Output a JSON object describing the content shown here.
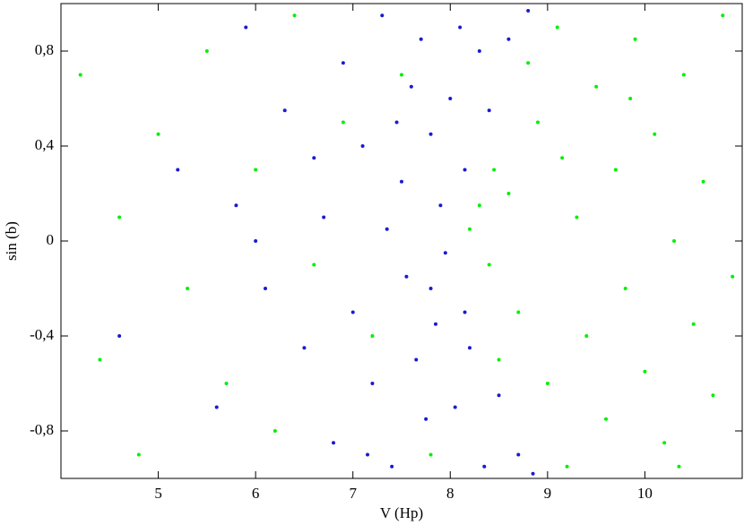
{
  "chart_data": {
    "type": "scatter",
    "xlabel": "V (Hp)",
    "ylabel": "sin (b)",
    "xlim": [
      4.0,
      11.0
    ],
    "ylim": [
      -1.0,
      1.0
    ],
    "xticks": [
      5,
      6,
      7,
      8,
      9,
      10
    ],
    "yticks": [
      {
        "value": -0.8,
        "label": "-0,8"
      },
      {
        "value": -0.4,
        "label": "-0,4"
      },
      0,
      {
        "value": 0.4,
        "label": "0,4"
      },
      {
        "value": 0.8,
        "label": "0,8"
      }
    ],
    "series": [
      {
        "color": "#1a1ad0",
        "x": [
          5.2,
          5.6,
          5.9,
          6.1,
          6.3,
          6.5,
          6.7,
          6.8,
          6.9,
          7.0,
          7.1,
          7.2,
          7.3,
          7.35,
          7.4,
          7.5,
          7.55,
          7.6,
          7.65,
          7.7,
          7.75,
          7.8,
          7.85,
          7.9,
          7.95,
          8.0,
          8.05,
          8.1,
          8.2,
          8.3,
          8.35,
          8.4,
          8.5,
          8.6,
          8.7,
          8.8,
          8.85,
          6.0,
          6.6,
          7.15,
          7.45,
          7.8,
          4.6,
          5.8,
          8.15,
          8.15
        ],
        "values": [
          0.3,
          -0.7,
          0.9,
          -0.2,
          0.55,
          -0.45,
          0.1,
          -0.85,
          0.75,
          -0.3,
          0.4,
          -0.6,
          0.95,
          0.05,
          -0.95,
          0.25,
          -0.15,
          0.65,
          -0.5,
          0.85,
          -0.75,
          0.45,
          -0.35,
          0.15,
          -0.05,
          0.6,
          -0.7,
          0.9,
          -0.45,
          0.8,
          -0.95,
          0.55,
          -0.65,
          0.85,
          -0.9,
          0.97,
          -0.98,
          0.0,
          0.35,
          -0.9,
          0.5,
          -0.2,
          -0.4,
          0.15,
          0.3,
          -0.3
        ]
      },
      {
        "color": "#00f000",
        "x": [
          4.2,
          4.4,
          4.6,
          4.8,
          5.0,
          5.3,
          5.5,
          5.7,
          6.0,
          6.2,
          6.4,
          6.6,
          6.9,
          7.2,
          7.5,
          7.8,
          8.2,
          8.4,
          8.6,
          8.7,
          8.9,
          9.0,
          9.1,
          9.2,
          9.3,
          9.4,
          9.5,
          9.6,
          9.7,
          9.8,
          9.9,
          10.0,
          10.1,
          10.2,
          10.3,
          10.4,
          10.5,
          10.6,
          10.7,
          10.8,
          10.9,
          8.8,
          8.5,
          9.15,
          9.85,
          10.35,
          8.3,
          8.45
        ],
        "values": [
          0.7,
          -0.5,
          0.1,
          -0.9,
          0.45,
          -0.2,
          0.8,
          -0.6,
          0.3,
          -0.8,
          0.95,
          -0.1,
          0.5,
          -0.4,
          0.7,
          -0.9,
          0.05,
          -0.1,
          0.2,
          -0.3,
          0.5,
          -0.6,
          0.9,
          -0.95,
          0.1,
          -0.4,
          0.65,
          -0.75,
          0.3,
          -0.2,
          0.85,
          -0.55,
          0.45,
          -0.85,
          0.0,
          0.7,
          -0.35,
          0.25,
          -0.65,
          0.95,
          -0.15,
          0.75,
          -0.5,
          0.35,
          0.6,
          -0.95,
          0.15,
          0.3
        ]
      }
    ]
  }
}
